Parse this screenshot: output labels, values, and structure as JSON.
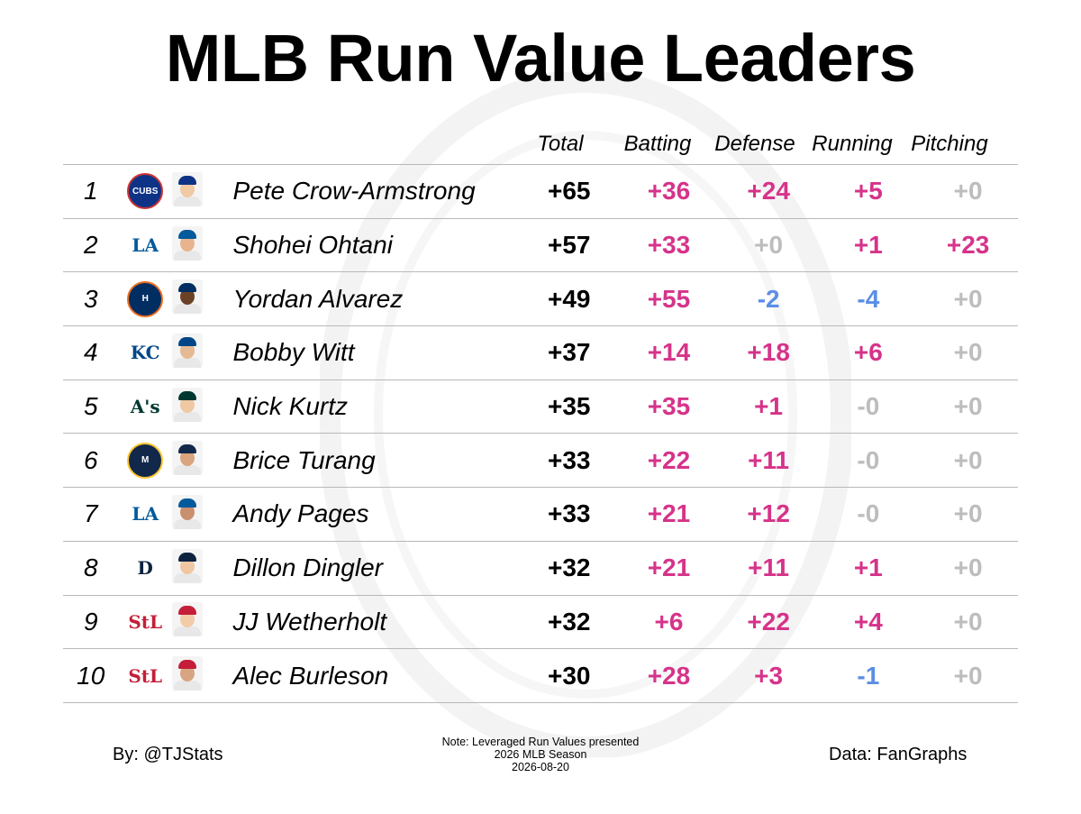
{
  "title": "MLB Run Value Leaders",
  "columns": [
    "Total",
    "Batting",
    "Defense",
    "Running",
    "Pitching"
  ],
  "footer": {
    "by": "By: @TJStats",
    "data_source": "Data: FanGraphs",
    "note": "Note: Leveraged Run Values presented",
    "season": "2026 MLB Season",
    "date": "2026-08-20"
  },
  "colors": {
    "positive": "#d6338a",
    "negative": "#5b8ee6",
    "zero": "#bdbdbd",
    "total": "#000000"
  },
  "chart_data": {
    "type": "table",
    "title": "MLB Run Value Leaders",
    "columns": [
      "Total",
      "Batting",
      "Defense",
      "Running",
      "Pitching"
    ],
    "rows": [
      {
        "rank": "1",
        "player": "Pete Crow-Armstrong",
        "team_logo": "cubs-logo-icon",
        "team_color": "#0e3386",
        "logo_text": "CUBS",
        "cells": [
          {
            "text": "+65",
            "sign": "total"
          },
          {
            "text": "+36",
            "sign": "pos"
          },
          {
            "text": "+24",
            "sign": "pos"
          },
          {
            "text": "+5",
            "sign": "pos"
          },
          {
            "text": "+0",
            "sign": "zero"
          }
        ]
      },
      {
        "rank": "2",
        "player": "Shohei Ohtani",
        "team_logo": "dodgers-logo-icon",
        "team_color": "#005a9c",
        "logo_text": "LA",
        "cells": [
          {
            "text": "+57",
            "sign": "total"
          },
          {
            "text": "+33",
            "sign": "pos"
          },
          {
            "text": "+0",
            "sign": "zero"
          },
          {
            "text": "+1",
            "sign": "pos"
          },
          {
            "text": "+23",
            "sign": "pos"
          }
        ]
      },
      {
        "rank": "3",
        "player": "Yordan Alvarez",
        "team_logo": "astros-logo-icon",
        "team_color": "#002d62",
        "logo_text": "H",
        "cells": [
          {
            "text": "+49",
            "sign": "total"
          },
          {
            "text": "+55",
            "sign": "pos"
          },
          {
            "text": "-2",
            "sign": "neg"
          },
          {
            "text": "-4",
            "sign": "neg"
          },
          {
            "text": "+0",
            "sign": "zero"
          }
        ]
      },
      {
        "rank": "4",
        "player": "Bobby Witt",
        "team_logo": "royals-logo-icon",
        "team_color": "#004687",
        "logo_text": "KC",
        "cells": [
          {
            "text": "+37",
            "sign": "total"
          },
          {
            "text": "+14",
            "sign": "pos"
          },
          {
            "text": "+18",
            "sign": "pos"
          },
          {
            "text": "+6",
            "sign": "pos"
          },
          {
            "text": "+0",
            "sign": "zero"
          }
        ]
      },
      {
        "rank": "5",
        "player": "Nick Kurtz",
        "team_logo": "athletics-logo-icon",
        "team_color": "#003831",
        "logo_text": "A's",
        "cells": [
          {
            "text": "+35",
            "sign": "total"
          },
          {
            "text": "+35",
            "sign": "pos"
          },
          {
            "text": "+1",
            "sign": "pos"
          },
          {
            "text": "-0",
            "sign": "zero"
          },
          {
            "text": "+0",
            "sign": "zero"
          }
        ]
      },
      {
        "rank": "6",
        "player": "Brice Turang",
        "team_logo": "brewers-logo-icon",
        "team_color": "#12284b",
        "logo_text": "M",
        "cells": [
          {
            "text": "+33",
            "sign": "total"
          },
          {
            "text": "+22",
            "sign": "pos"
          },
          {
            "text": "+11",
            "sign": "pos"
          },
          {
            "text": "-0",
            "sign": "zero"
          },
          {
            "text": "+0",
            "sign": "zero"
          }
        ]
      },
      {
        "rank": "7",
        "player": "Andy Pages",
        "team_logo": "dodgers-logo-icon",
        "team_color": "#005a9c",
        "logo_text": "LA",
        "cells": [
          {
            "text": "+33",
            "sign": "total"
          },
          {
            "text": "+21",
            "sign": "pos"
          },
          {
            "text": "+12",
            "sign": "pos"
          },
          {
            "text": "-0",
            "sign": "zero"
          },
          {
            "text": "+0",
            "sign": "zero"
          }
        ]
      },
      {
        "rank": "8",
        "player": "Dillon Dingler",
        "team_logo": "tigers-logo-icon",
        "team_color": "#0c2340",
        "logo_text": "D",
        "cells": [
          {
            "text": "+32",
            "sign": "total"
          },
          {
            "text": "+21",
            "sign": "pos"
          },
          {
            "text": "+11",
            "sign": "pos"
          },
          {
            "text": "+1",
            "sign": "pos"
          },
          {
            "text": "+0",
            "sign": "zero"
          }
        ]
      },
      {
        "rank": "9",
        "player": "JJ Wetherholt",
        "team_logo": "cardinals-logo-icon",
        "team_color": "#c41e3a",
        "logo_text": "StL",
        "cells": [
          {
            "text": "+32",
            "sign": "total"
          },
          {
            "text": "+6",
            "sign": "pos"
          },
          {
            "text": "+22",
            "sign": "pos"
          },
          {
            "text": "+4",
            "sign": "pos"
          },
          {
            "text": "+0",
            "sign": "zero"
          }
        ]
      },
      {
        "rank": "10",
        "player": "Alec Burleson",
        "team_logo": "cardinals-logo-icon",
        "team_color": "#c41e3a",
        "logo_text": "StL",
        "cells": [
          {
            "text": "+30",
            "sign": "total"
          },
          {
            "text": "+28",
            "sign": "pos"
          },
          {
            "text": "+3",
            "sign": "pos"
          },
          {
            "text": "-1",
            "sign": "neg"
          },
          {
            "text": "+0",
            "sign": "zero"
          }
        ]
      }
    ]
  }
}
